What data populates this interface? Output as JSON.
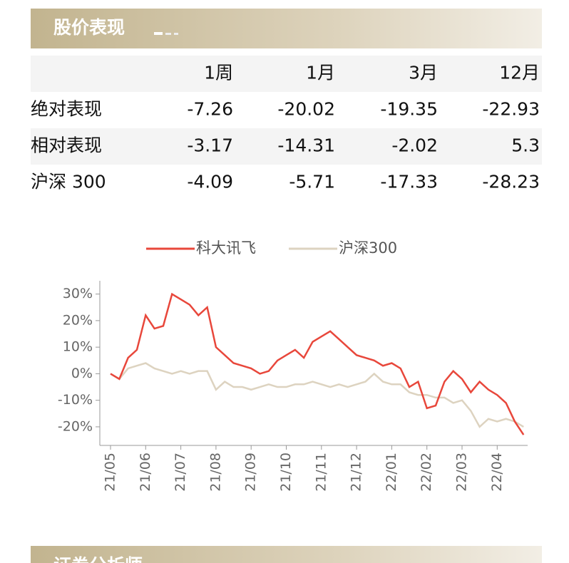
{
  "header": {
    "title": "股价表现"
  },
  "table": {
    "columns": [
      "1周",
      "1月",
      "3月",
      "12月"
    ],
    "rows": [
      {
        "label": "绝对表现",
        "values": [
          -7.26,
          -20.02,
          -19.35,
          -22.93
        ]
      },
      {
        "label": "相对表现",
        "values": [
          -3.17,
          -14.31,
          -2.02,
          5.3
        ]
      },
      {
        "label": "沪深 300",
        "values": [
          -4.09,
          -5.71,
          -17.33,
          -28.23
        ]
      }
    ]
  },
  "chart_data": {
    "type": "line",
    "categories": [
      "21/05",
      null,
      null,
      null,
      "21/06",
      null,
      null,
      null,
      "21/07",
      null,
      null,
      null,
      "21/08",
      null,
      null,
      null,
      "21/09",
      null,
      null,
      null,
      "21/10",
      null,
      null,
      null,
      "21/11",
      null,
      null,
      null,
      "21/12",
      null,
      null,
      null,
      "22/01",
      null,
      null,
      null,
      "22/02",
      null,
      null,
      null,
      "22/03",
      null,
      null,
      null,
      "22/04",
      null,
      null,
      null
    ],
    "series": [
      {
        "name": "科大讯飞",
        "color": "#e8473b",
        "values": [
          0,
          -2,
          6,
          9,
          22,
          17,
          18,
          30,
          28,
          26,
          22,
          25,
          10,
          7,
          4,
          3,
          2,
          0,
          1,
          5,
          7,
          9,
          6,
          12,
          14,
          16,
          13,
          10,
          7,
          6,
          5,
          3,
          4,
          2,
          -5,
          -3,
          -13,
          -12,
          -3,
          1,
          -2,
          -7,
          -3,
          -6,
          -8,
          -11,
          -18,
          -23
        ]
      },
      {
        "name": "沪深300",
        "color": "#ddd3c0",
        "values": [
          0,
          -2,
          2,
          3,
          4,
          2,
          1,
          0,
          1,
          0,
          1,
          1,
          -6,
          -3,
          -5,
          -5,
          -6,
          -5,
          -4,
          -5,
          -5,
          -4,
          -4,
          -3,
          -4,
          -5,
          -4,
          -5,
          -4,
          -3,
          0,
          -3,
          -4,
          -4,
          -7,
          -8,
          -8,
          -9,
          -9,
          -11,
          -10,
          -14,
          -20,
          -17,
          -18,
          -17,
          -18,
          -20
        ]
      }
    ],
    "ylim": [
      -27,
      35
    ],
    "yticks": [
      {
        "value": -20,
        "label": "-20%"
      },
      {
        "value": -10,
        "label": "-10%"
      },
      {
        "value": 0,
        "label": "0%"
      },
      {
        "value": 10,
        "label": "10%"
      },
      {
        "value": 20,
        "label": "20%"
      },
      {
        "value": 30,
        "label": "30%"
      }
    ]
  },
  "footer": {
    "title": "证券分析师"
  }
}
